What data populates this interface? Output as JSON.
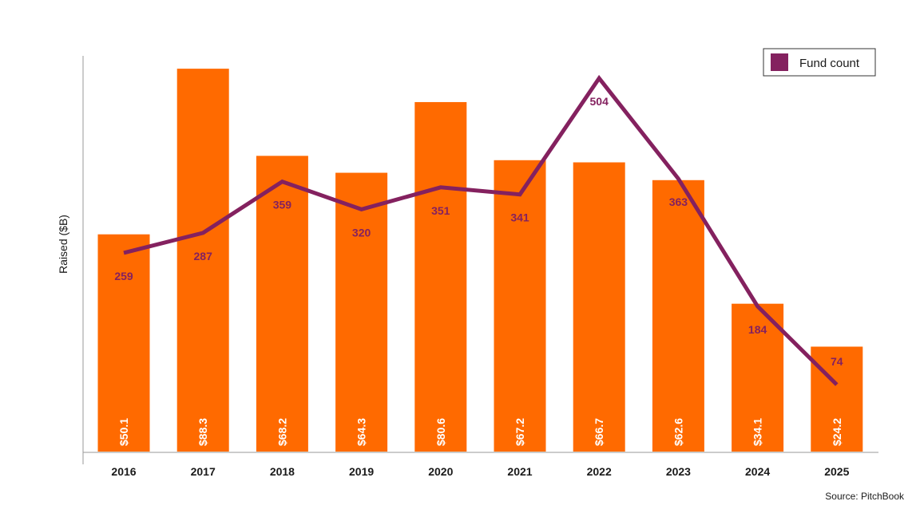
{
  "chart_data": {
    "type": "bar",
    "title": "",
    "xlabel": "",
    "ylabel": "Raised ($B)",
    "ylim": [
      0,
      92
    ],
    "categories": [
      "2016",
      "2017",
      "2018",
      "2019",
      "2020",
      "2021",
      "2022",
      "2023",
      "2024",
      "2025"
    ],
    "series": [
      {
        "name": "Raised ($B)",
        "type": "bar",
        "values": [
          50.1,
          88.3,
          68.2,
          64.3,
          80.6,
          67.2,
          66.7,
          62.6,
          34.1,
          24.2
        ],
        "labels": [
          "$50.1",
          "$88.3",
          "$68.2",
          "$64.3",
          "$80.6",
          "$67.2",
          "$66.7",
          "$62.6",
          "$34.1",
          "$24.2"
        ]
      },
      {
        "name": "Fund count",
        "type": "line",
        "values": [
          259,
          287,
          359,
          320,
          351,
          341,
          504,
          363,
          184,
          74
        ],
        "labels": [
          "259",
          "287",
          "359",
          "320",
          "351",
          "341",
          "504",
          "363",
          "184",
          "74"
        ],
        "ylim": [
          -20,
          540
        ]
      }
    ],
    "legend": {
      "entries": [
        "Fund count"
      ],
      "position": "top-right"
    },
    "grid": false,
    "colors": {
      "bar": "#FF6A00",
      "line": "#84215F",
      "axis": "#9a9a9a"
    }
  },
  "source": "Source: PitchBook"
}
